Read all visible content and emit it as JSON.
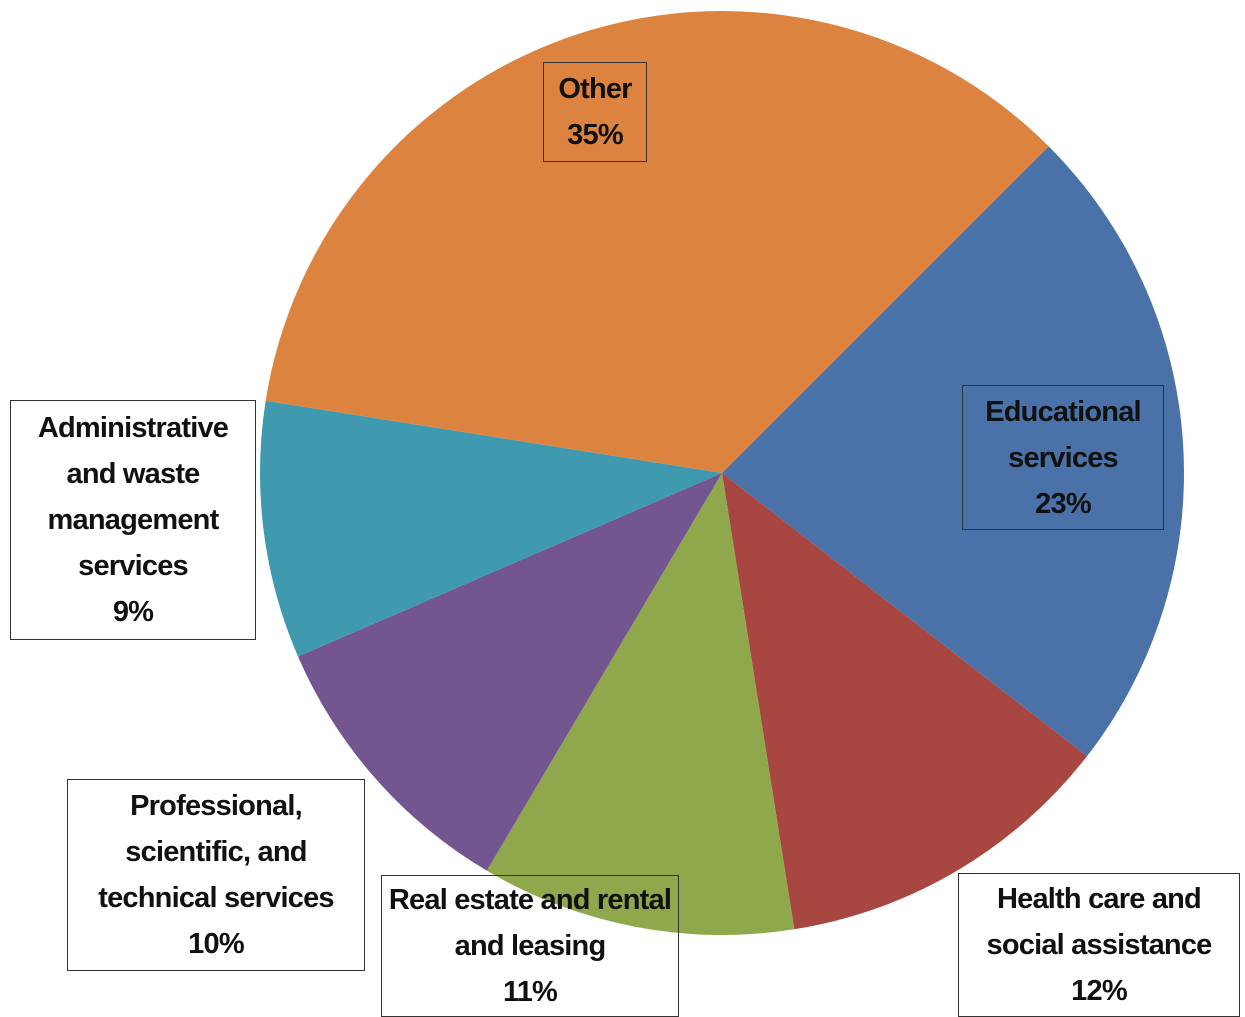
{
  "chart_data": {
    "type": "pie",
    "categories": [
      "Educational services",
      "Health care and social assistance",
      "Real estate and rental and leasing",
      "Professional, scientific, and technical services",
      "Administrative and waste management services",
      "Other"
    ],
    "values": [
      23,
      12,
      11,
      10,
      9,
      35
    ],
    "value_labels": [
      "23%",
      "12%",
      "11%",
      "10%",
      "9%",
      "35%"
    ],
    "colors": [
      "#4a72a8",
      "#a84742",
      "#8ea84b",
      "#73558f",
      "#3f9ab0",
      "#dc843f"
    ],
    "start_angle": 45
  }
}
